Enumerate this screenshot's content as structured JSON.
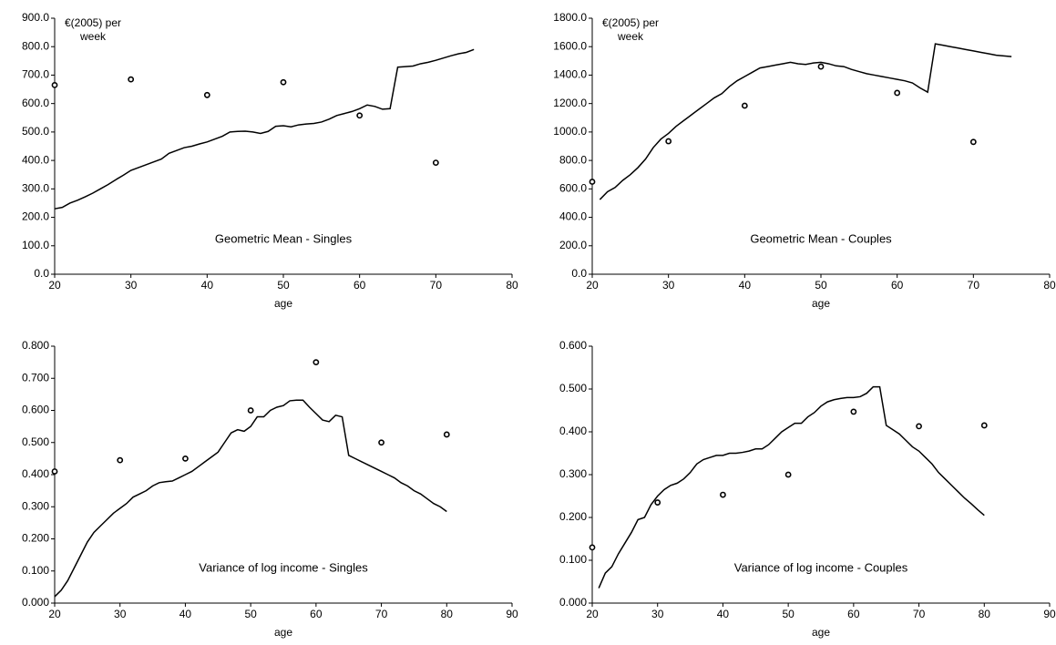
{
  "chart_data": [
    {
      "type": "line",
      "title": "Geometric Mean - Singles",
      "xlabel": "age",
      "y_unit": [
        "€(2005) per",
        "week"
      ],
      "xlim": [
        20,
        80
      ],
      "xticks": [
        20,
        30,
        40,
        50,
        60,
        70,
        80
      ],
      "ylim": [
        0,
        900
      ],
      "yticks": [
        {
          "value": 0,
          "label": "0.0"
        },
        {
          "value": 100,
          "label": "100.0"
        },
        {
          "value": 200,
          "label": "200.0"
        },
        {
          "value": 300,
          "label": "300.0"
        },
        {
          "value": 400,
          "label": "400.0"
        },
        {
          "value": 500,
          "label": "500.0"
        },
        {
          "value": 600,
          "label": "600.0"
        },
        {
          "value": 700,
          "label": "700.0"
        },
        {
          "value": 800,
          "label": "800.0"
        },
        {
          "value": 900,
          "label": "900.0"
        }
      ],
      "series": [
        {
          "mode": "line",
          "color": "#000000",
          "x": [
            20,
            21,
            22,
            23,
            24,
            25,
            26,
            27,
            28,
            29,
            30,
            31,
            32,
            33,
            34,
            35,
            36,
            37,
            38,
            39,
            40,
            41,
            42,
            43,
            44,
            45,
            46,
            47,
            48,
            49,
            50,
            51,
            52,
            53,
            54,
            55,
            56,
            57,
            58,
            59,
            60,
            61,
            62,
            63,
            64,
            65,
            66,
            67,
            68,
            69,
            70,
            71,
            72,
            73,
            74,
            75
          ],
          "values": [
            230,
            235,
            250,
            260,
            272,
            285,
            300,
            315,
            332,
            348,
            365,
            375,
            385,
            395,
            405,
            425,
            435,
            445,
            450,
            458,
            465,
            475,
            485,
            500,
            502,
            503,
            500,
            495,
            502,
            520,
            522,
            518,
            525,
            528,
            530,
            535,
            545,
            558,
            565,
            572,
            582,
            595,
            590,
            580,
            582,
            728,
            730,
            732,
            740,
            745,
            752,
            760,
            768,
            775,
            780,
            790
          ]
        },
        {
          "mode": "markers",
          "color": "#000000",
          "x": [
            20,
            30,
            40,
            50,
            60,
            70
          ],
          "values": [
            665,
            685,
            630,
            675,
            558,
            392
          ]
        }
      ]
    },
    {
      "type": "line",
      "title": "Geometric Mean - Couples",
      "xlabel": "age",
      "y_unit": [
        "€(2005) per",
        "week"
      ],
      "xlim": [
        20,
        80
      ],
      "xticks": [
        20,
        30,
        40,
        50,
        60,
        70,
        80
      ],
      "ylim": [
        0,
        1800
      ],
      "yticks": [
        {
          "value": 0,
          "label": "0.0"
        },
        {
          "value": 200,
          "label": "200.0"
        },
        {
          "value": 400,
          "label": "400.0"
        },
        {
          "value": 600,
          "label": "600.0"
        },
        {
          "value": 800,
          "label": "800.0"
        },
        {
          "value": 1000,
          "label": "1000.0"
        },
        {
          "value": 1200,
          "label": "1200.0"
        },
        {
          "value": 1400,
          "label": "1400.0"
        },
        {
          "value": 1600,
          "label": "1600.0"
        },
        {
          "value": 1800,
          "label": "1800.0"
        }
      ],
      "series": [
        {
          "mode": "line",
          "color": "#000000",
          "x": [
            21,
            22,
            23,
            24,
            25,
            26,
            27,
            28,
            29,
            30,
            31,
            32,
            33,
            34,
            35,
            36,
            37,
            38,
            39,
            40,
            41,
            42,
            43,
            44,
            45,
            46,
            47,
            48,
            49,
            50,
            51,
            52,
            53,
            54,
            55,
            56,
            57,
            58,
            59,
            60,
            61,
            62,
            63,
            64,
            65,
            66,
            67,
            68,
            69,
            70,
            71,
            72,
            73,
            74,
            75
          ],
          "values": [
            525,
            580,
            610,
            660,
            700,
            750,
            810,
            890,
            950,
            990,
            1040,
            1080,
            1120,
            1160,
            1200,
            1240,
            1270,
            1320,
            1360,
            1390,
            1420,
            1450,
            1460,
            1470,
            1480,
            1490,
            1480,
            1475,
            1485,
            1490,
            1480,
            1465,
            1460,
            1440,
            1425,
            1410,
            1400,
            1390,
            1380,
            1370,
            1360,
            1345,
            1310,
            1280,
            1620,
            1610,
            1600,
            1590,
            1580,
            1570,
            1560,
            1550,
            1540,
            1535,
            1530
          ]
        },
        {
          "mode": "markers",
          "color": "#000000",
          "x": [
            20,
            30,
            40,
            50,
            60,
            70
          ],
          "values": [
            650,
            935,
            1185,
            1460,
            1275,
            930
          ]
        }
      ]
    },
    {
      "type": "line",
      "title": "Variance of log income - Singles",
      "xlabel": "age",
      "xlim": [
        20,
        90
      ],
      "xticks": [
        20,
        30,
        40,
        50,
        60,
        70,
        80,
        90
      ],
      "ylim": [
        0,
        0.8
      ],
      "yticks": [
        {
          "value": 0,
          "label": "0.000"
        },
        {
          "value": 0.1,
          "label": "0.100"
        },
        {
          "value": 0.2,
          "label": "0.200"
        },
        {
          "value": 0.3,
          "label": "0.300"
        },
        {
          "value": 0.4,
          "label": "0.400"
        },
        {
          "value": 0.5,
          "label": "0.500"
        },
        {
          "value": 0.6,
          "label": "0.600"
        },
        {
          "value": 0.7,
          "label": "0.700"
        },
        {
          "value": 0.8,
          "label": "0.800"
        }
      ],
      "series": [
        {
          "mode": "line",
          "color": "#000000",
          "x": [
            20,
            21,
            22,
            23,
            24,
            25,
            26,
            27,
            28,
            29,
            30,
            31,
            32,
            33,
            34,
            35,
            36,
            37,
            38,
            39,
            40,
            41,
            42,
            43,
            44,
            45,
            46,
            47,
            48,
            49,
            50,
            51,
            52,
            53,
            54,
            55,
            56,
            57,
            58,
            59,
            60,
            61,
            62,
            63,
            64,
            65,
            66,
            67,
            68,
            69,
            70,
            71,
            72,
            73,
            74,
            75,
            76,
            77,
            78,
            79,
            80
          ],
          "values": [
            0.02,
            0.04,
            0.07,
            0.11,
            0.15,
            0.19,
            0.22,
            0.24,
            0.26,
            0.28,
            0.295,
            0.31,
            0.33,
            0.34,
            0.35,
            0.365,
            0.375,
            0.378,
            0.38,
            0.39,
            0.4,
            0.41,
            0.425,
            0.44,
            0.455,
            0.47,
            0.5,
            0.53,
            0.54,
            0.535,
            0.55,
            0.58,
            0.58,
            0.6,
            0.61,
            0.615,
            0.63,
            0.632,
            0.632,
            0.61,
            0.59,
            0.57,
            0.565,
            0.585,
            0.58,
            0.46,
            0.45,
            0.44,
            0.43,
            0.42,
            0.41,
            0.4,
            0.39,
            0.375,
            0.365,
            0.35,
            0.34,
            0.325,
            0.31,
            0.3,
            0.285
          ]
        },
        {
          "mode": "markers",
          "color": "#000000",
          "x": [
            20,
            30,
            40,
            50,
            60,
            70,
            80
          ],
          "values": [
            0.41,
            0.445,
            0.45,
            0.6,
            0.75,
            0.5,
            0.525
          ]
        }
      ]
    },
    {
      "type": "line",
      "title": "Variance of log income - Couples",
      "xlabel": "age",
      "xlim": [
        20,
        90
      ],
      "xticks": [
        20,
        30,
        40,
        50,
        60,
        70,
        80,
        90
      ],
      "ylim": [
        0,
        0.6
      ],
      "yticks": [
        {
          "value": 0,
          "label": "0.000"
        },
        {
          "value": 0.1,
          "label": "0.100"
        },
        {
          "value": 0.2,
          "label": "0.200"
        },
        {
          "value": 0.3,
          "label": "0.300"
        },
        {
          "value": 0.4,
          "label": "0.400"
        },
        {
          "value": 0.5,
          "label": "0.500"
        },
        {
          "value": 0.6,
          "label": "0.600"
        }
      ],
      "series": [
        {
          "mode": "line",
          "color": "#000000",
          "x": [
            21,
            22,
            23,
            24,
            25,
            26,
            27,
            28,
            29,
            30,
            31,
            32,
            33,
            34,
            35,
            36,
            37,
            38,
            39,
            40,
            41,
            42,
            43,
            44,
            45,
            46,
            47,
            48,
            49,
            50,
            51,
            52,
            53,
            54,
            55,
            56,
            57,
            58,
            59,
            60,
            61,
            62,
            63,
            64,
            65,
            66,
            67,
            68,
            69,
            70,
            71,
            72,
            73,
            74,
            75,
            76,
            77,
            78,
            79,
            80
          ],
          "values": [
            0.035,
            0.07,
            0.085,
            0.115,
            0.14,
            0.165,
            0.195,
            0.2,
            0.23,
            0.25,
            0.265,
            0.275,
            0.28,
            0.29,
            0.305,
            0.325,
            0.335,
            0.34,
            0.345,
            0.345,
            0.35,
            0.35,
            0.352,
            0.355,
            0.36,
            0.36,
            0.37,
            0.385,
            0.4,
            0.41,
            0.42,
            0.42,
            0.435,
            0.445,
            0.46,
            0.47,
            0.475,
            0.478,
            0.48,
            0.48,
            0.482,
            0.49,
            0.505,
            0.505,
            0.415,
            0.405,
            0.395,
            0.38,
            0.365,
            0.355,
            0.34,
            0.325,
            0.305,
            0.29,
            0.275,
            0.26,
            0.245,
            0.232,
            0.218,
            0.205
          ]
        },
        {
          "mode": "markers",
          "color": "#000000",
          "x": [
            20,
            30,
            40,
            50,
            60,
            70,
            80
          ],
          "values": [
            0.13,
            0.235,
            0.253,
            0.3,
            0.447,
            0.413,
            0.415
          ]
        }
      ]
    }
  ]
}
